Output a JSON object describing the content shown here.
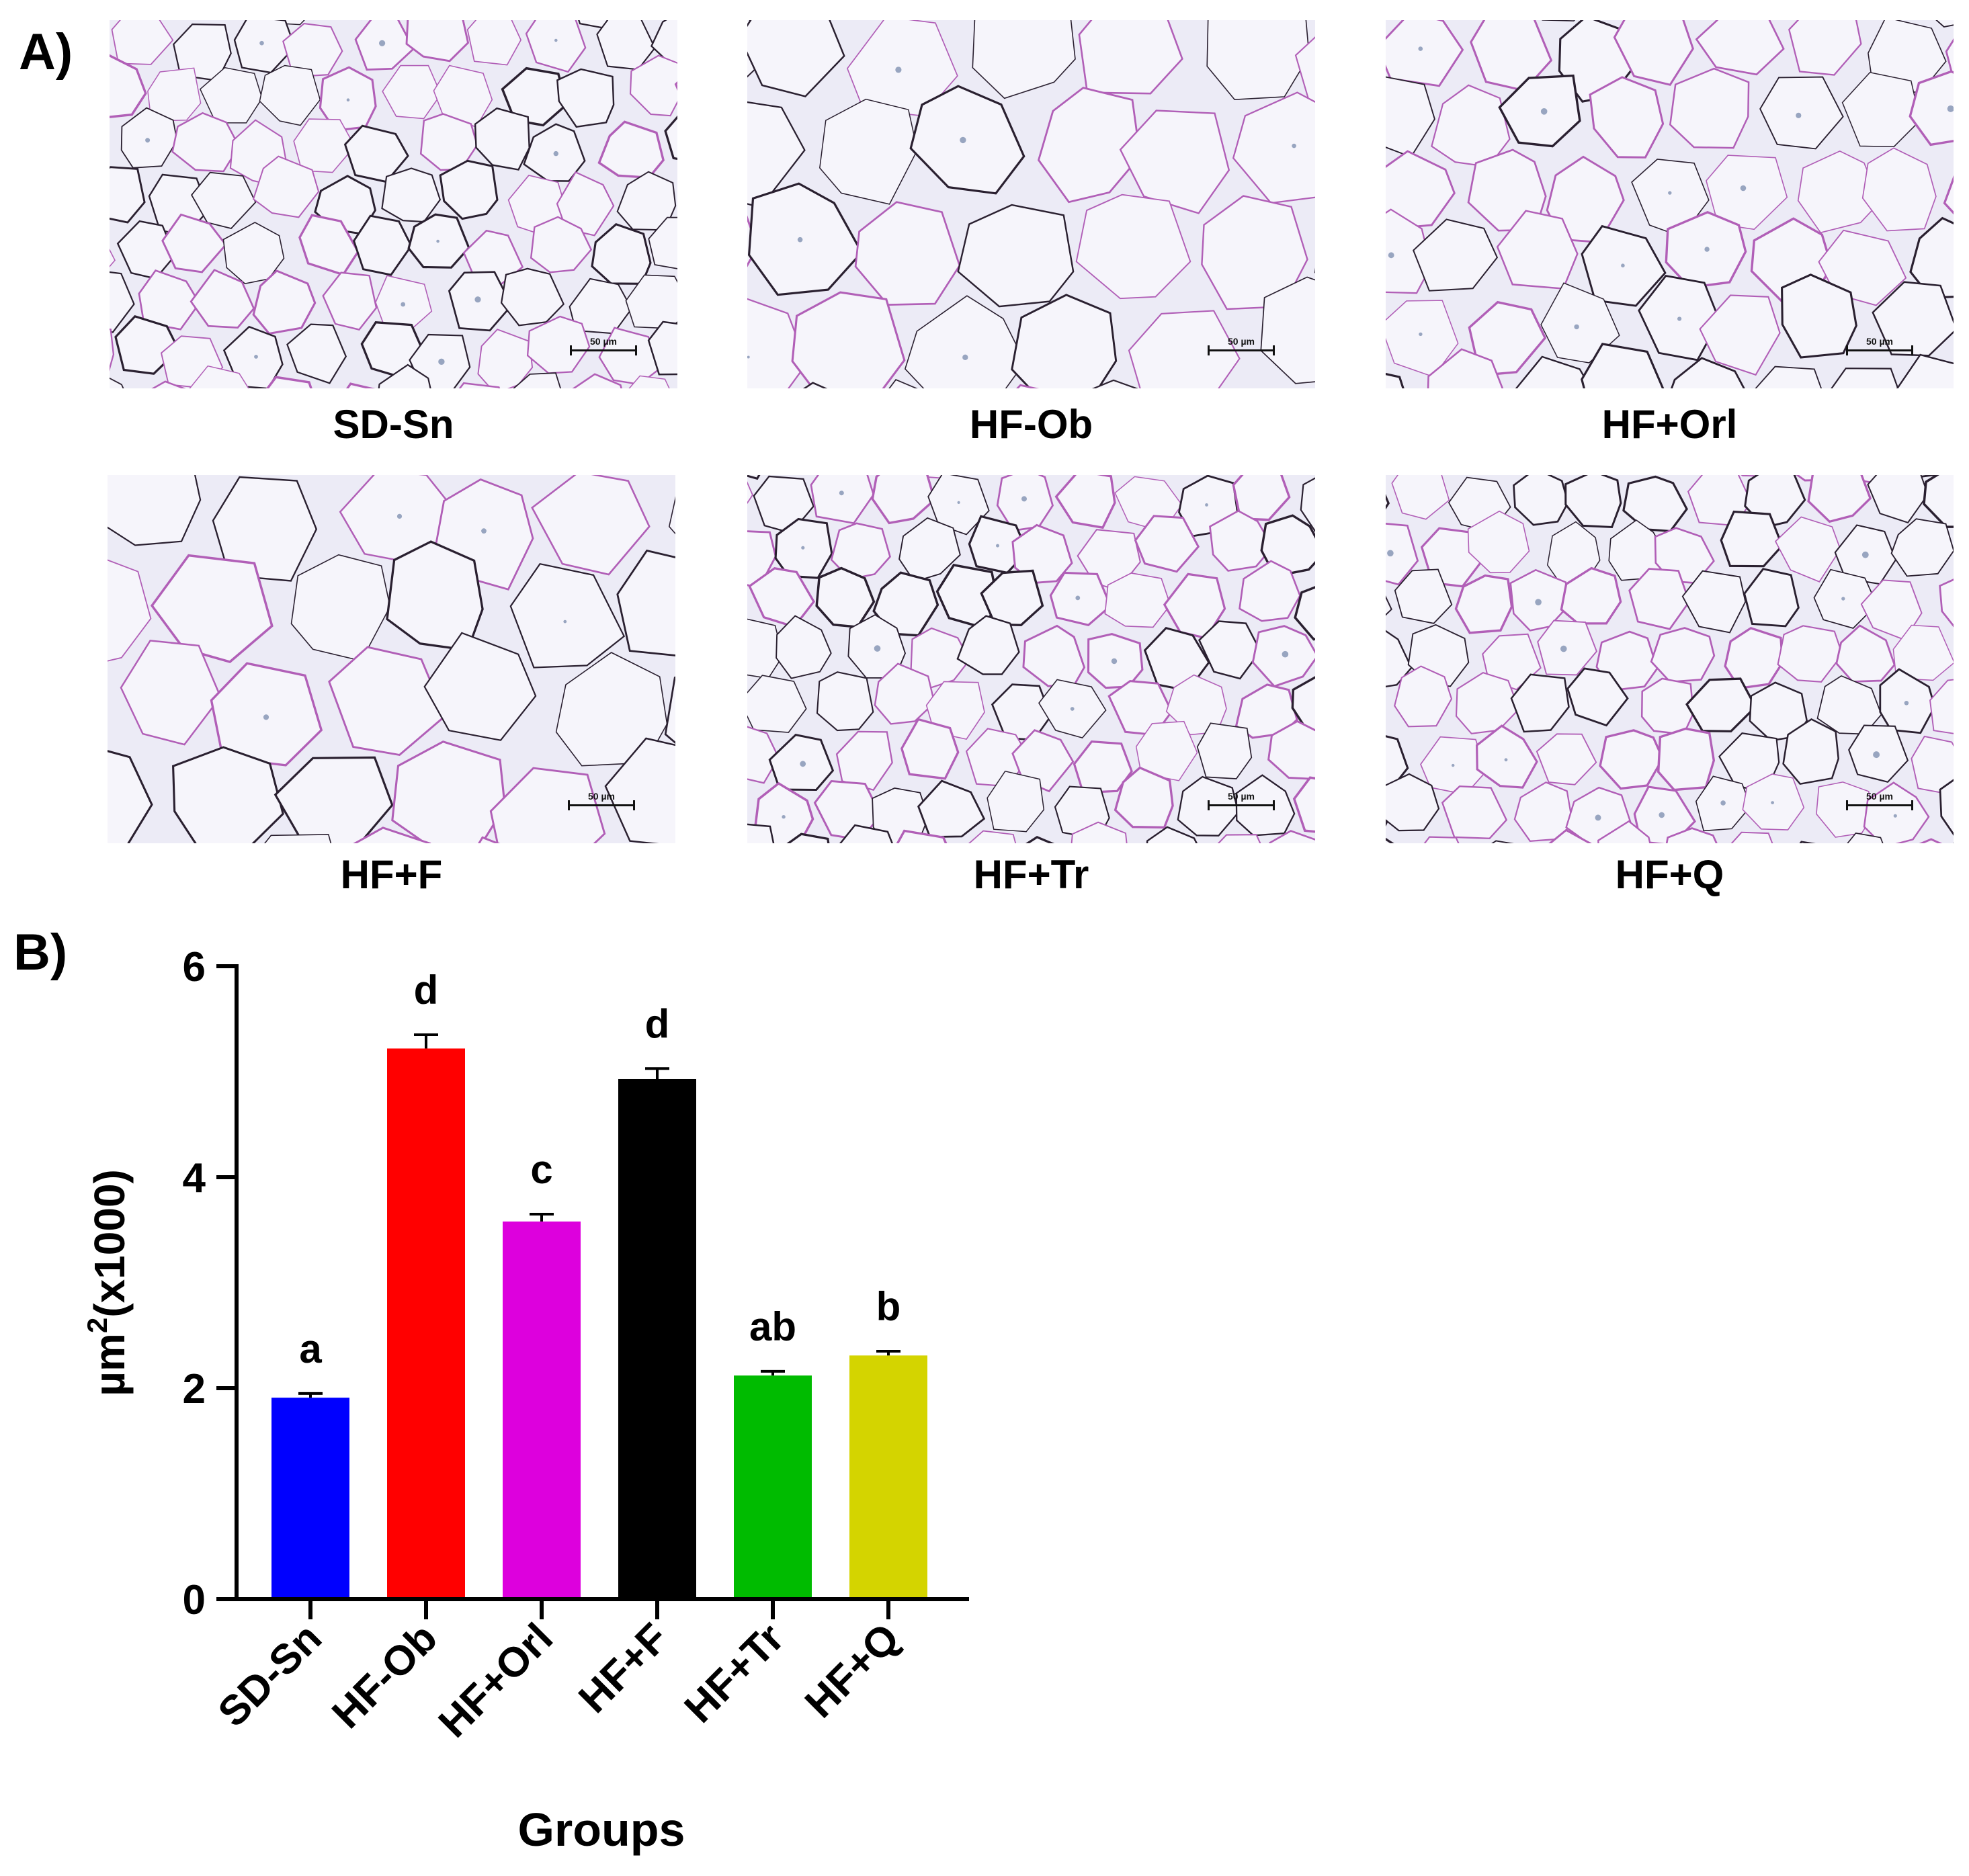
{
  "panel_a": {
    "label": "A)",
    "scale_bar_text": "50 µm",
    "images": [
      {
        "caption": "SD-Sn",
        "cell_size": "small"
      },
      {
        "caption": "HF-Ob",
        "cell_size": "large"
      },
      {
        "caption": "HF+Orl",
        "cell_size": "medium"
      },
      {
        "caption": "HF+F",
        "cell_size": "large"
      },
      {
        "caption": "HF+Tr",
        "cell_size": "small"
      },
      {
        "caption": "HF+Q",
        "cell_size": "small"
      }
    ]
  },
  "panel_b": {
    "label": "B)"
  },
  "chart_data": {
    "type": "bar",
    "title": "",
    "xlabel": "Groups",
    "ylabel_main": "µm",
    "ylabel_sup": "2",
    "ylabel_tail": "(x1000)",
    "ylim": [
      0,
      6
    ],
    "yticks": [
      0,
      2,
      4,
      6
    ],
    "categories": [
      "SD-Sn",
      "HF-Ob",
      "HF+Orl",
      "HF+F",
      "HF+Tr",
      "HF+Q"
    ],
    "values": [
      1.91,
      5.22,
      3.58,
      4.93,
      2.12,
      2.31
    ],
    "errors": [
      0.04,
      0.13,
      0.07,
      0.1,
      0.04,
      0.04
    ],
    "significance_letters": [
      "a",
      "d",
      "c",
      "d",
      "ab",
      "b"
    ],
    "colors": [
      "#0000ff",
      "#ff0000",
      "#dd00dd",
      "#000000",
      "#00bb00",
      "#d4d400"
    ],
    "grid": false,
    "legend": "none"
  }
}
